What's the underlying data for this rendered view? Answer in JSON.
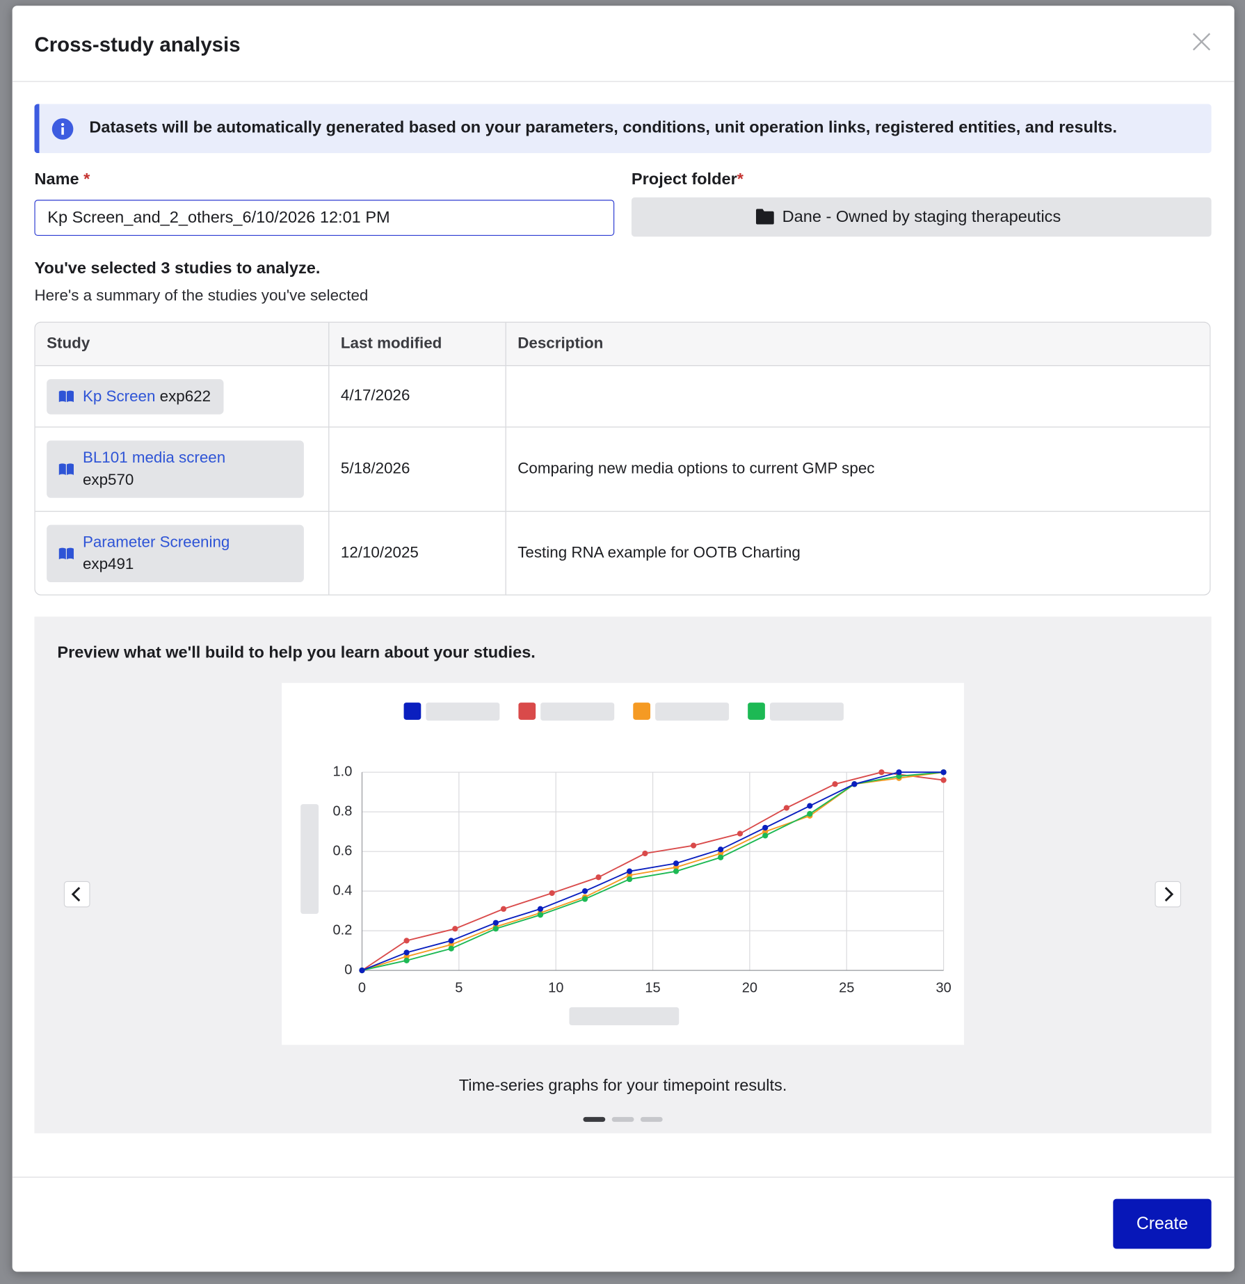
{
  "modal": {
    "title": "Cross-study analysis",
    "info": "Datasets will be automatically generated based on your parameters, conditions, unit operation links, registered entities, and results.",
    "name_label": "Name",
    "required_mark": "*",
    "name_value": "Kp Screen_and_2_others_6/10/2026 12:01 PM",
    "folder_label": "Project folder",
    "folder_value": "Dane - Owned by staging therapeutics",
    "selected_heading": "You've selected 3 studies to analyze.",
    "summary_text": "Here's a summary of the studies you've selected",
    "table": {
      "headers": [
        "Study",
        "Last modified",
        "Description"
      ],
      "rows": [
        {
          "study_name": "Kp Screen",
          "study_id": "exp622",
          "last_modified": "4/17/2026"
        },
        {
          "study_name": "BL101 media screen",
          "study_id": "exp570",
          "last_modified": "5/18/2026",
          "description": "Comparing new media options to current GMP spec"
        },
        {
          "study_name": "Parameter Screening",
          "study_id": "exp491",
          "last_modified": "12/10/2025",
          "description": "Testing RNA example for OOTB Charting"
        }
      ]
    },
    "preview_heading": "Preview what we'll build to help you learn about your studies.",
    "caption": "Time-series graphs for your timepoint results.",
    "create_button": "Create"
  },
  "chart_data": {
    "type": "line",
    "series": [
      {
        "color": "#0a1fbf",
        "x": [
          0,
          2.3,
          4.6,
          6.9,
          9.2,
          11.5,
          13.8,
          16.2,
          18.5,
          20.8,
          23.1,
          25.4,
          27.7,
          30
        ],
        "values": [
          0,
          0.09,
          0.15,
          0.24,
          0.31,
          0.4,
          0.5,
          0.54,
          0.61,
          0.72,
          0.83,
          0.94,
          1,
          1
        ]
      },
      {
        "color": "#d94a4a",
        "x": [
          0,
          2.3,
          4.8,
          7.3,
          9.8,
          12.2,
          14.6,
          17.1,
          19.5,
          21.9,
          24.4,
          26.8,
          30
        ],
        "values": [
          0,
          0.15,
          0.21,
          0.31,
          0.39,
          0.47,
          0.59,
          0.63,
          0.69,
          0.82,
          0.94,
          1,
          0.96
        ]
      },
      {
        "color": "#f59a23",
        "x": [
          0,
          2.3,
          4.6,
          6.9,
          9.2,
          11.5,
          13.8,
          16.2,
          18.5,
          20.8,
          23.1,
          25.4,
          27.7,
          30
        ],
        "values": [
          0,
          0.07,
          0.13,
          0.22,
          0.29,
          0.37,
          0.48,
          0.52,
          0.59,
          0.7,
          0.78,
          0.94,
          0.97,
          1
        ]
      },
      {
        "color": "#1db954",
        "x": [
          0,
          2.3,
          4.6,
          6.9,
          9.2,
          11.5,
          13.8,
          16.2,
          18.5,
          20.8,
          23.1,
          25.4,
          27.7,
          30
        ],
        "values": [
          0,
          0.05,
          0.11,
          0.21,
          0.28,
          0.36,
          0.46,
          0.5,
          0.57,
          0.68,
          0.79,
          0.94,
          0.98,
          1
        ]
      }
    ],
    "xlim": [
      0,
      30
    ],
    "xticks": [
      0,
      5,
      10,
      15,
      20,
      25,
      30
    ],
    "ylim": [
      0,
      1
    ],
    "yticks": [
      0,
      0.2,
      0.4,
      0.6,
      0.8,
      {
        "value": 1,
        "label": "1.0"
      }
    ],
    "grid": true
  }
}
